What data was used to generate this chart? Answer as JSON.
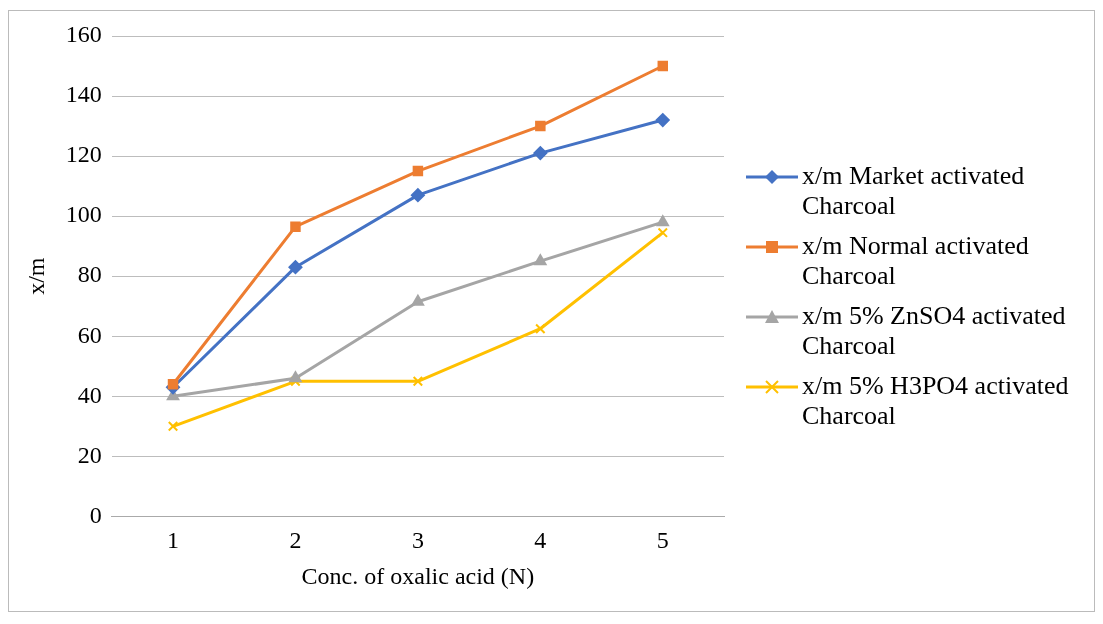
{
  "chart_data": {
    "type": "line",
    "xlabel": "Conc. of oxalic acid (N)",
    "ylabel": "x/m",
    "categories": [
      "1",
      "2",
      "3",
      "4",
      "5"
    ],
    "ylim": [
      0,
      160
    ],
    "yticks": [
      0,
      20,
      40,
      60,
      80,
      100,
      120,
      140,
      160
    ],
    "grid": "y",
    "legend": "right",
    "series": [
      {
        "name": "x/m Market activated Charcoal",
        "color": "#4472c4",
        "marker": "diamond",
        "values": [
          43,
          83,
          107,
          121,
          132
        ]
      },
      {
        "name": "x/m Normal  activated Charcoal",
        "color": "#ed7d31",
        "marker": "square",
        "values": [
          44,
          96.5,
          115,
          130,
          150
        ]
      },
      {
        "name": "x/m 5% ZnSO4 activated Charcoal",
        "color": "#a5a5a5",
        "marker": "triangle",
        "values": [
          40,
          46,
          71.5,
          85,
          98
        ]
      },
      {
        "name": "x/m 5% H3PO4 activated Charcoal",
        "color": "#ffc000",
        "marker": "cross",
        "values": [
          30,
          45,
          45,
          62.5,
          94.5
        ]
      }
    ]
  }
}
